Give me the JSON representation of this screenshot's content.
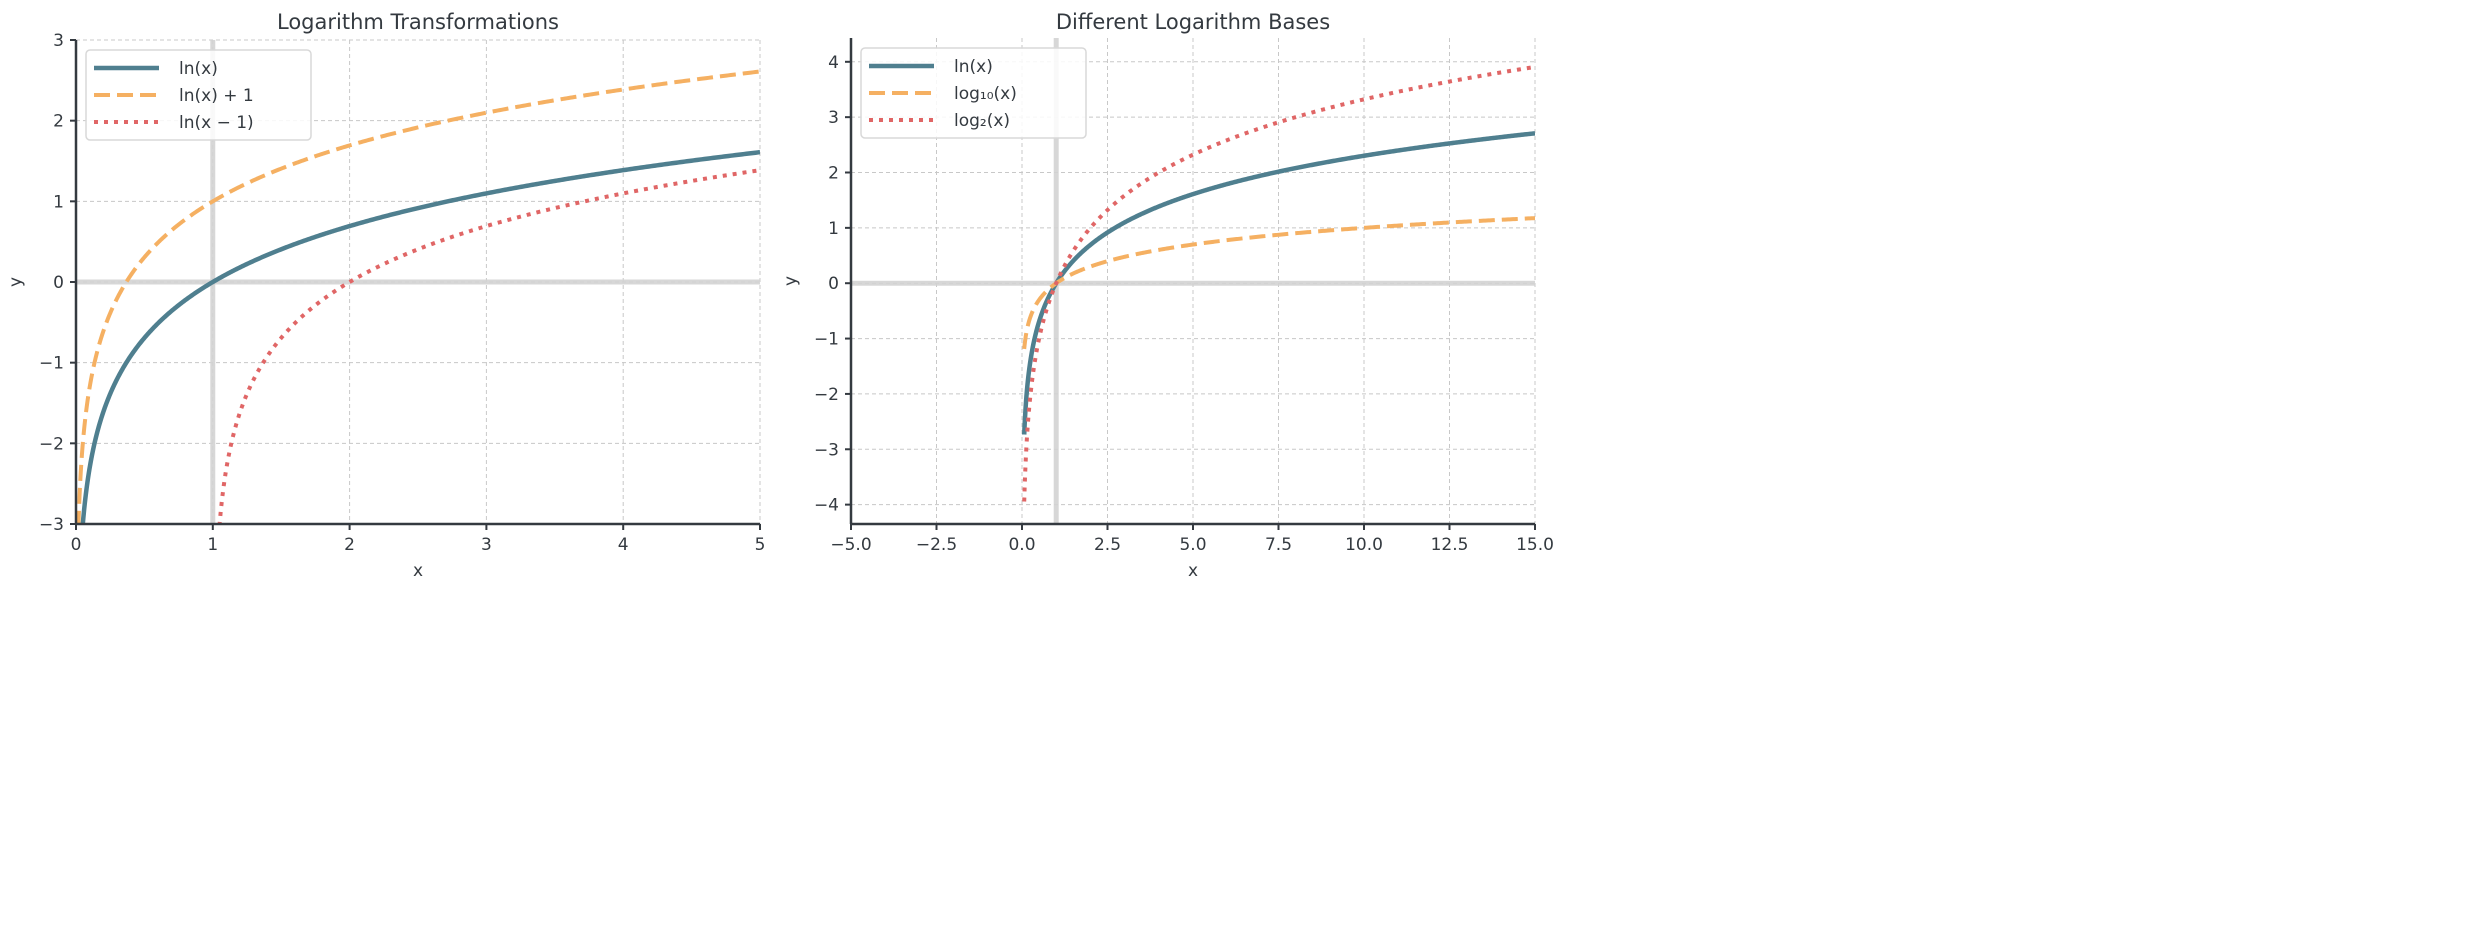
{
  "colors": {
    "ln": "#4f7f8f",
    "orange": "#f5b062",
    "red": "#e06666",
    "axis": "#343a40",
    "grid": "#c8c8c8",
    "ref": "#d3d3d3"
  },
  "chart_data": [
    {
      "type": "line",
      "title": "Logarithm Transformations",
      "xlabel": "x",
      "ylabel": "y",
      "xlim": [
        0,
        5
      ],
      "ylim": [
        -3,
        3
      ],
      "xticks": [
        0,
        1,
        2,
        3,
        4,
        5
      ],
      "xtick_labels": [
        "0",
        "1",
        "2",
        "3",
        "4",
        "5"
      ],
      "yticks": [
        -3,
        -2,
        -1,
        0,
        1,
        2,
        3
      ],
      "ytick_labels": [
        "−3",
        "−2",
        "−1",
        "0",
        "1",
        "2",
        "3"
      ],
      "grid": true,
      "legend_position": "top-left",
      "reference_lines": {
        "x": 1,
        "y": 0
      },
      "series": [
        {
          "name": "ln(x)",
          "func": "ln",
          "shift_x": 0,
          "shift_y": 0,
          "x_range": [
            0.01,
            5
          ],
          "style": "solid",
          "color_key": "ln"
        },
        {
          "name": "ln(x) + 1",
          "func": "ln",
          "shift_x": 0,
          "shift_y": 1,
          "x_range": [
            0.01,
            5
          ],
          "style": "dashed",
          "color_key": "orange"
        },
        {
          "name": "ln(x − 1)",
          "func": "ln",
          "shift_x": 1,
          "shift_y": 0,
          "x_range": [
            1.01,
            5
          ],
          "style": "dotted",
          "color_key": "red"
        }
      ]
    },
    {
      "type": "line",
      "title": "Different Logarithm Bases",
      "xlabel": "x",
      "ylabel": "y",
      "xlim": [
        -5,
        15
      ],
      "ylim": [
        -4.35,
        4.43
      ],
      "xticks": [
        -5,
        -2.5,
        0,
        2.5,
        5,
        7.5,
        10,
        12.5,
        15
      ],
      "xtick_labels": [
        "−5.0",
        "−2.5",
        "0.0",
        "2.5",
        "5.0",
        "7.5",
        "10.0",
        "12.5",
        "15.0"
      ],
      "yticks": [
        -4,
        -3,
        -2,
        -1,
        0,
        1,
        2,
        3,
        4
      ],
      "ytick_labels": [
        "−4",
        "−3",
        "−2",
        "−1",
        "0",
        "1",
        "2",
        "3",
        "4"
      ],
      "grid": true,
      "legend_position": "top-left",
      "reference_lines": {
        "x": 1,
        "y": 0
      },
      "series": [
        {
          "name": "ln(x)",
          "func": "ln",
          "shift_x": 0,
          "shift_y": 0,
          "x_range": [
            0.065,
            15
          ],
          "style": "solid",
          "color_key": "ln"
        },
        {
          "name": "log₁₀(x)",
          "func": "log10",
          "shift_x": 0,
          "shift_y": 0,
          "x_range": [
            0.065,
            15
          ],
          "style": "dashed",
          "color_key": "orange"
        },
        {
          "name": "log₂(x)",
          "func": "log2",
          "shift_x": 0,
          "shift_y": 0,
          "x_range": [
            0.065,
            15
          ],
          "style": "dotted",
          "color_key": "red"
        }
      ]
    }
  ]
}
